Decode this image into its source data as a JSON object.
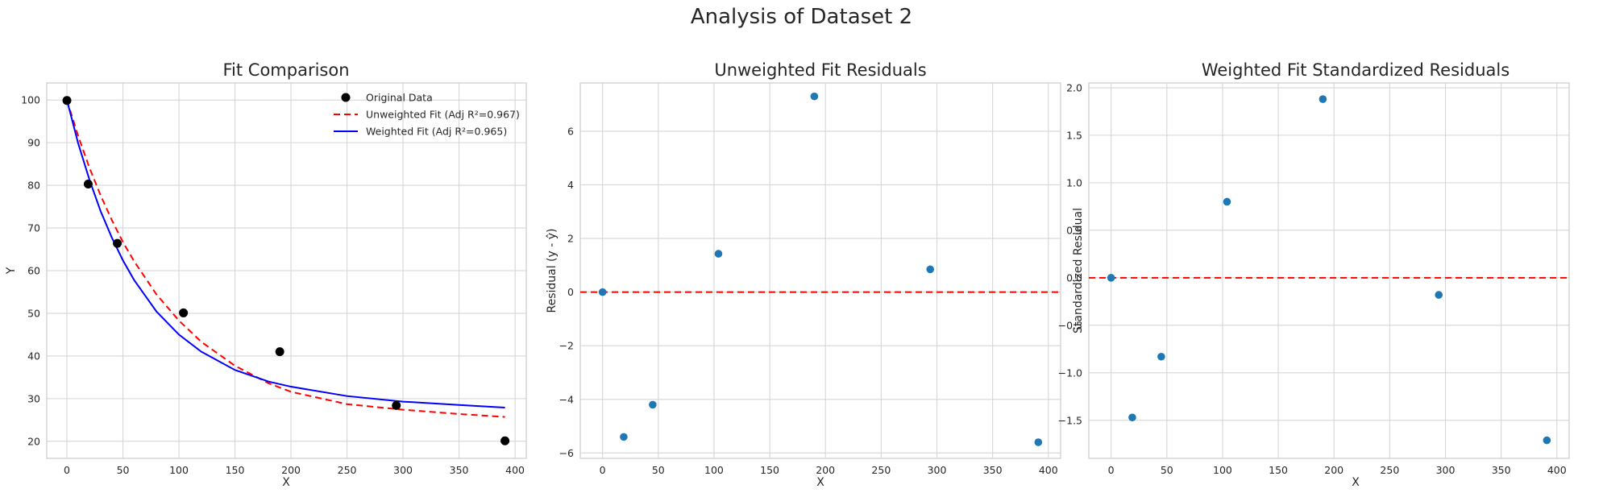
{
  "figure": {
    "suptitle": "Analysis of Dataset 2"
  },
  "colors": {
    "original": "#000000",
    "unweighted": "#ff0000",
    "weighted": "#0000ff",
    "residual_points": "#1f77b4",
    "zero_line": "#ff0000"
  },
  "chart_data": [
    {
      "id": "fit",
      "type": "scatter",
      "title": "Fit Comparison",
      "xlabel": "X",
      "ylabel": "Y",
      "xlim": [
        -18,
        410
      ],
      "ylim": [
        16,
        104
      ],
      "xticks": [
        0,
        50,
        100,
        150,
        200,
        250,
        300,
        350,
        400
      ],
      "yticks": [
        20,
        30,
        40,
        50,
        60,
        70,
        80,
        90,
        100
      ],
      "grid": true,
      "legend": "top-right",
      "series": [
        {
          "name": "Original Data",
          "kind": "points",
          "x": [
            0,
            19,
            45,
            104,
            190,
            294,
            391
          ],
          "y": [
            99.9,
            80.3,
            66.4,
            50.1,
            41.0,
            28.4,
            20.1
          ]
        },
        {
          "name": "Unweighted Fit (Adj R²=0.967)",
          "kind": "curve",
          "style": "dashed",
          "x": [
            0,
            10,
            20,
            30,
            40,
            50,
            60,
            80,
            100,
            120,
            150,
            180,
            200,
            250,
            300,
            350,
            391
          ],
          "y": [
            100.0,
            91.6,
            84.2,
            77.7,
            71.9,
            66.7,
            62.2,
            54.4,
            48.3,
            43.3,
            37.7,
            33.6,
            31.6,
            28.7,
            27.4,
            26.4,
            25.7
          ]
        },
        {
          "name": "Weighted Fit (Adj R²=0.965)",
          "kind": "curve",
          "style": "solid",
          "x": [
            0,
            10,
            20,
            30,
            40,
            50,
            60,
            80,
            100,
            120,
            150,
            180,
            200,
            250,
            300,
            350,
            391
          ],
          "y": [
            100.0,
            89.9,
            81.4,
            74.0,
            67.8,
            62.4,
            57.8,
            50.4,
            45.0,
            41.0,
            36.7,
            34.0,
            32.8,
            30.6,
            29.3,
            28.5,
            27.9
          ]
        }
      ]
    },
    {
      "id": "resid",
      "type": "scatter",
      "title": "Unweighted Fit Residuals",
      "xlabel": "X",
      "ylabel": "Residual (y - ŷ)",
      "xlim": [
        -20,
        411
      ],
      "ylim": [
        -6.2,
        7.8
      ],
      "xticks": [
        0,
        50,
        100,
        150,
        200,
        250,
        300,
        350,
        400
      ],
      "yticks": [
        -6,
        -4,
        -2,
        0,
        2,
        4,
        6
      ],
      "grid": true,
      "reference_line": 0,
      "series": [
        {
          "name": "",
          "kind": "points",
          "x": [
            0,
            19,
            45,
            104,
            190,
            294,
            391
          ],
          "y": [
            0.0,
            -5.4,
            -4.2,
            1.43,
            7.3,
            0.85,
            -5.6
          ]
        }
      ]
    },
    {
      "id": "stdres",
      "type": "scatter",
      "title": "Weighted Fit Standardized Residuals",
      "xlabel": "X",
      "ylabel": "Standardized Residual",
      "xlim": [
        -20,
        411
      ],
      "ylim": [
        -1.9,
        2.05
      ],
      "xticks": [
        0,
        50,
        100,
        150,
        200,
        250,
        300,
        350,
        400
      ],
      "yticks": [
        -1.5,
        -1.0,
        -0.5,
        0.0,
        0.5,
        1.0,
        1.5,
        2.0
      ],
      "grid": true,
      "reference_line": 0,
      "series": [
        {
          "name": "",
          "kind": "points",
          "x": [
            0,
            19,
            45,
            104,
            190,
            294,
            391
          ],
          "y": [
            0.0,
            -1.47,
            -0.83,
            0.8,
            1.88,
            -0.18,
            -1.71
          ]
        }
      ]
    }
  ]
}
